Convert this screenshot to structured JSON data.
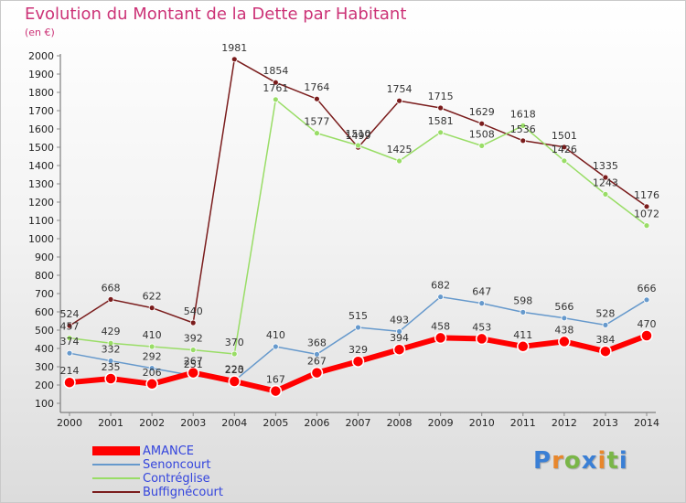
{
  "header": {
    "title": "Evolution du Montant de la Dette par Habitant",
    "subtitle": "(en €)"
  },
  "brand": {
    "text": "Proxiti",
    "colors": [
      "#3a7fd5",
      "#e8872c",
      "#7ab648",
      "#3a7fd5",
      "#e8872c",
      "#7ab648",
      "#3a7fd5"
    ]
  },
  "chart_data": {
    "type": "line",
    "title": "Evolution du Montant de la Dette par Habitant",
    "subtitle": "(en €)",
    "x": [
      "2000",
      "2001",
      "2002",
      "2003",
      "2004",
      "2005",
      "2006",
      "2007",
      "2008",
      "2009",
      "2010",
      "2011",
      "2012",
      "2013",
      "2014"
    ],
    "ylim": [
      100,
      2000
    ],
    "yticks": [
      100,
      200,
      300,
      400,
      500,
      600,
      700,
      800,
      900,
      1000,
      1100,
      1200,
      1300,
      1400,
      1500,
      1600,
      1700,
      1800,
      1900,
      2000
    ],
    "grid": false,
    "legend_position": "bottom-left",
    "series": [
      {
        "name": "Buffignécourt",
        "color": "#7a1c1c",
        "values": [
          524,
          668,
          622,
          540,
          1981,
          1854,
          1764,
          1499,
          1754,
          1715,
          1629,
          1536,
          1501,
          1335,
          1176
        ]
      },
      {
        "name": "Contréglise",
        "color": "#99dd66",
        "values": [
          457,
          429,
          410,
          392,
          370,
          1761,
          1577,
          1510,
          1425,
          1581,
          1508,
          1618,
          1426,
          1243,
          1072
        ]
      },
      {
        "name": "Senoncourt",
        "color": "#6699cc",
        "values": [
          374,
          332,
          292,
          251,
          223,
          410,
          368,
          515,
          493,
          682,
          647,
          598,
          566,
          528,
          666
        ]
      },
      {
        "name": "AMANCE",
        "color": "#ff0000",
        "values": [
          214,
          235,
          206,
          267,
          220,
          167,
          267,
          329,
          394,
          458,
          453,
          411,
          438,
          384,
          470
        ]
      }
    ],
    "legend_order": [
      "AMANCE",
      "Senoncourt",
      "Contréglise",
      "Buffignécourt"
    ]
  }
}
